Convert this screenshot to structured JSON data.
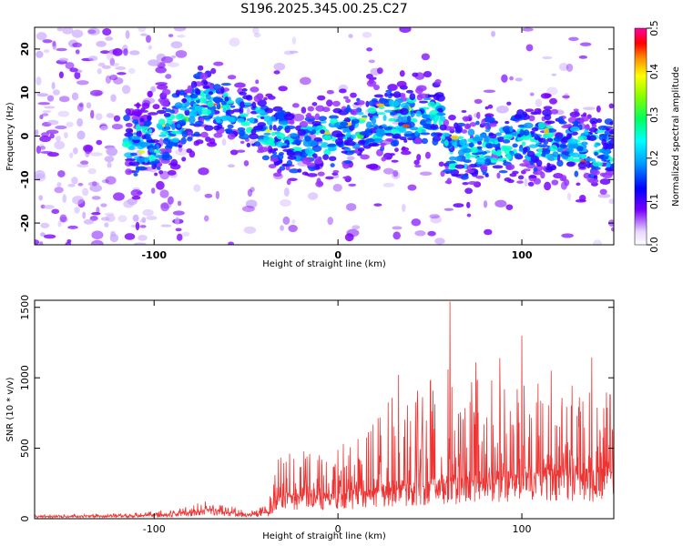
{
  "title": "S196.2025.345.00.25.C27",
  "chart_data": [
    {
      "type": "heatmap",
      "xlabel": "Height of straight line (km)",
      "ylabel": "Frequency (Hz)",
      "xlim": [
        -165,
        150
      ],
      "ylim": [
        -25,
        25
      ],
      "xticks": [
        -100,
        0,
        100
      ],
      "yticks": [
        -20,
        -10,
        0,
        10,
        20
      ],
      "band_center_hz": [
        {
          "x": -100,
          "y": -2
        },
        {
          "x": -75,
          "y": 8
        },
        {
          "x": -50,
          "y": 4
        },
        {
          "x": -25,
          "y": -2
        },
        {
          "x": 0,
          "y": 0
        },
        {
          "x": 30,
          "y": 4
        },
        {
          "x": 55,
          "y": 5
        },
        {
          "x": 60,
          "y": -4
        },
        {
          "x": 100,
          "y": -1
        },
        {
          "x": 145,
          "y": -3
        }
      ],
      "colorbar": {
        "label": "Normalized spectral amplitude",
        "range": [
          0.0,
          0.5
        ],
        "ticks": [
          "0.0",
          "0.1",
          "0.2",
          "0.3",
          "0.4",
          "0.5"
        ]
      }
    },
    {
      "type": "line",
      "xlabel": "Height of straight line (km)",
      "ylabel": "SNR (10 * v/v)",
      "xlim": [
        -165,
        150
      ],
      "ylim": [
        0,
        1550
      ],
      "xticks": [
        -100,
        0,
        100
      ],
      "yticks": [
        0,
        500,
        1000,
        1500
      ],
      "color": "#ee3333",
      "envelope": [
        {
          "x": -165,
          "base": 15,
          "peak": 30
        },
        {
          "x": -110,
          "base": 20,
          "peak": 40
        },
        {
          "x": -80,
          "base": 40,
          "peak": 90
        },
        {
          "x": -70,
          "base": 60,
          "peak": 140
        },
        {
          "x": -50,
          "base": 25,
          "peak": 60
        },
        {
          "x": -38,
          "base": 40,
          "peak": 100
        },
        {
          "x": -33,
          "base": 150,
          "peak": 480
        },
        {
          "x": 0,
          "base": 160,
          "peak": 500
        },
        {
          "x": 30,
          "base": 200,
          "peak": 900
        },
        {
          "x": 60,
          "base": 250,
          "peak": 1100
        },
        {
          "x": 100,
          "base": 300,
          "peak": 1000
        },
        {
          "x": 150,
          "base": 300,
          "peak": 900
        }
      ],
      "spikes": [
        {
          "x": 61,
          "y": 1540
        },
        {
          "x": 100,
          "y": 1300
        },
        {
          "x": 138,
          "y": 1145
        },
        {
          "x": 88,
          "y": 1140
        },
        {
          "x": 75,
          "y": 1110
        },
        {
          "x": 33,
          "y": 1020
        },
        {
          "x": 116,
          "y": 1050
        },
        {
          "x": 148,
          "y": 880
        }
      ]
    }
  ]
}
